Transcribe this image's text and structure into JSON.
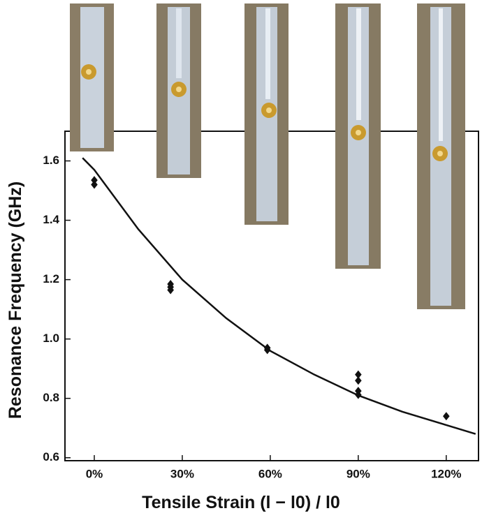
{
  "chart_data": {
    "type": "scatter",
    "xlabel": "Tensile Strain (l − l0) / l0",
    "ylabel": "Resonance Frequency (GHz)",
    "xlim": [
      -10,
      131
    ],
    "ylim": [
      0.59,
      1.7
    ],
    "xticks": [
      {
        "value": 0,
        "label": "0%"
      },
      {
        "value": 30,
        "label": "30%"
      },
      {
        "value": 60,
        "label": "60%"
      },
      {
        "value": 90,
        "label": "90%"
      },
      {
        "value": 120,
        "label": "120%"
      }
    ],
    "yticks": [
      0.6,
      0.8,
      {
        "value": 1.0,
        "label": "1.0"
      },
      1.2,
      1.4,
      1.6
    ],
    "series": [
      {
        "color": "#111111",
        "marker": "diamond",
        "x": [
          0,
          0,
          26,
          26,
          26,
          59,
          59,
          90,
          90,
          90,
          90,
          120
        ],
        "values": [
          1.535,
          1.52,
          1.185,
          1.175,
          1.165,
          0.97,
          0.963,
          0.88,
          0.86,
          0.825,
          0.812,
          0.74
        ]
      },
      {
        "color": "#111111",
        "marker": "line",
        "x": [
          -4,
          0,
          15,
          30,
          45,
          60,
          75,
          90,
          105,
          120,
          130
        ],
        "values": [
          1.61,
          1.57,
          1.37,
          1.2,
          1.07,
          0.96,
          0.88,
          0.81,
          0.755,
          0.71,
          0.68
        ]
      }
    ]
  }
}
